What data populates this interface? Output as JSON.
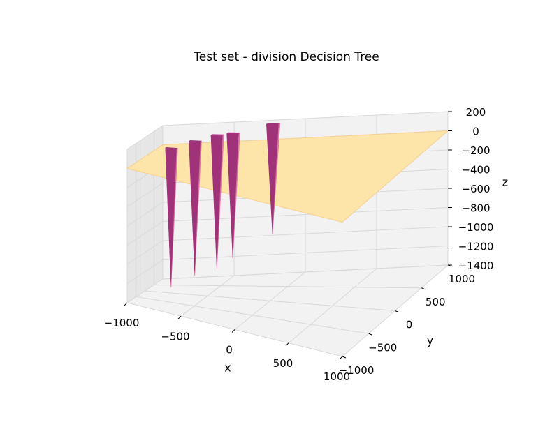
{
  "chart_data": {
    "type": "surface3d",
    "title": "Test set - division Decision Tree",
    "xlabel": "x",
    "ylabel": "y",
    "zlabel": "z",
    "xlim": [
      -1000,
      1000
    ],
    "ylim": [
      -1000,
      1000
    ],
    "zlim": [
      -1400,
      200
    ],
    "x_ticks": [
      "−1000",
      "−500",
      "0",
      "500",
      "1000"
    ],
    "y_ticks": [
      "−1000",
      "−500",
      "0",
      "500",
      "1000"
    ],
    "z_ticks": [
      "200",
      "0",
      "−200",
      "−400",
      "−600",
      "−800",
      "−1000",
      "−1200",
      "−1400"
    ],
    "grid": true,
    "colormap": "magma",
    "surface_plateau_z": 0,
    "spikes": [
      {
        "x": -800,
        "y": 50,
        "z_top": 100,
        "z_min": -1350
      },
      {
        "x": -650,
        "y": 250,
        "z_top": 150,
        "z_min": -1250
      },
      {
        "x": -500,
        "y": 350,
        "z_top": 200,
        "z_min": -1200
      },
      {
        "x": -400,
        "y": 450,
        "z_top": 200,
        "z_min": -1100
      },
      {
        "x": -150,
        "y": 650,
        "z_top": 250,
        "z_min": -900
      }
    ],
    "colors": {
      "plateau": "#fde4a8",
      "plateau_edge": "#f6cf8f",
      "spike": "#a0327a",
      "spike_light": "#d86aa0",
      "pane": "#f2f2f2",
      "pane_dark": "#e6e6e6",
      "grid": "#d8d8d8"
    }
  }
}
